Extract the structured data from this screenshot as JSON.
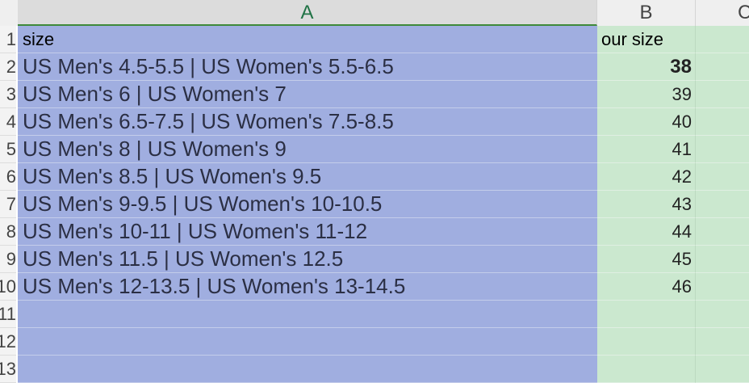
{
  "columns": [
    "A",
    "B",
    "C"
  ],
  "row_numbers": [
    "1",
    "2",
    "3",
    "4",
    "5",
    "6",
    "7",
    "8",
    "9",
    "10",
    "11",
    "12",
    "13"
  ],
  "header": {
    "a": "size",
    "b": "our size"
  },
  "rows": [
    {
      "a": "US Men's 4.5-5.5 | US Women's 5.5-6.5",
      "b": "38"
    },
    {
      "a": "US Men's 6 | US Women's 7",
      "b": "39"
    },
    {
      "a": "US Men's 6.5-7.5 | US Women's 7.5-8.5",
      "b": "40"
    },
    {
      "a": "US Men's 8 | US Women's 9",
      "b": "41"
    },
    {
      "a": "US Men's 8.5 | US Women's 9.5",
      "b": "42"
    },
    {
      "a": "US Men's 9-9.5 | US Women's 10-10.5",
      "b": "43"
    },
    {
      "a": "US Men's 10-11 | US Women's 11-12",
      "b": "44"
    },
    {
      "a": "US Men's 11.5 | US Women's 12.5",
      "b": "45"
    },
    {
      "a": "US Men's 12-13.5 | US Women's 13-14.5",
      "b": "46"
    }
  ],
  "colors": {
    "col_a_fill": "#a0aee0",
    "col_b_fill": "#cbe8cf",
    "selected_header": "#217346"
  }
}
